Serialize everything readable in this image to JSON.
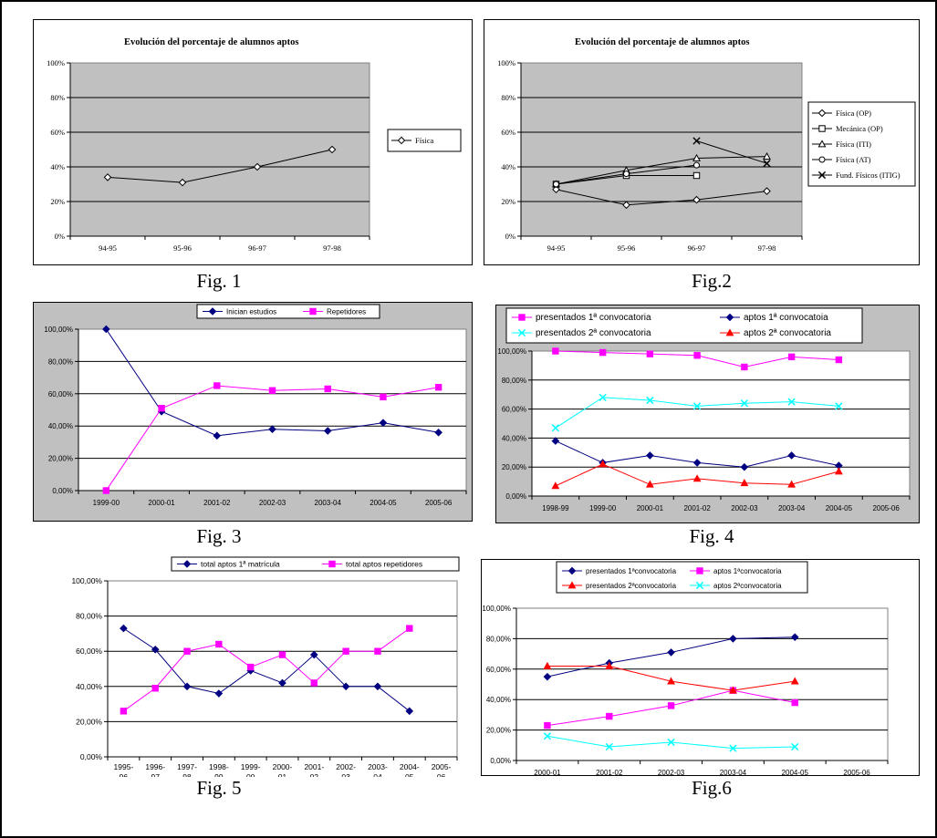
{
  "captions": [
    "Fig. 1",
    "Fig.2",
    "Fig. 3",
    "Fig. 4",
    "Fig. 5",
    "Fig.6"
  ],
  "chart_data": [
    {
      "id": "fig1",
      "type": "line",
      "title": "Evolución del porcentaje de alumnos aptos",
      "categories": [
        "94-95",
        "95-96",
        "96-97",
        "97-98"
      ],
      "ylim": [
        0,
        100
      ],
      "yticks": [
        "0%",
        "20%",
        "40%",
        "60%",
        "80%",
        "100%"
      ],
      "grid": true,
      "legend": "right",
      "series": [
        {
          "name": "Física",
          "marker": "diamond",
          "color": "#000000",
          "values": [
            34,
            31,
            40,
            50
          ]
        }
      ]
    },
    {
      "id": "fig2",
      "type": "line",
      "title": "Evolución del porcentaje de alumnos aptos",
      "categories": [
        "94-95",
        "95-96",
        "96-97",
        "97-98"
      ],
      "ylim": [
        0,
        100
      ],
      "yticks": [
        "0%",
        "20%",
        "40%",
        "60%",
        "80%",
        "100%"
      ],
      "grid": true,
      "legend": "right",
      "series": [
        {
          "name": "Física (OP)",
          "marker": "diamond",
          "color": "#000000",
          "values": [
            27,
            18,
            21,
            26
          ]
        },
        {
          "name": "Mecánica (OP)",
          "marker": "square",
          "color": "#000000",
          "values": [
            30,
            35,
            35,
            null
          ]
        },
        {
          "name": "Física (ITI)",
          "marker": "triangle",
          "color": "#000000",
          "values": [
            30,
            38,
            45,
            46
          ]
        },
        {
          "name": "Física (AT)",
          "marker": "circle",
          "color": "#000000",
          "values": [
            30,
            36,
            41,
            null
          ]
        },
        {
          "name": "Fund. Físicos (ITIG)",
          "marker": "x",
          "color": "#000000",
          "values": [
            null,
            null,
            55,
            42
          ]
        }
      ]
    },
    {
      "id": "fig3",
      "type": "line",
      "categories": [
        "1999-00",
        "2000-01",
        "2001-02",
        "2002-03",
        "2003-04",
        "2004-05",
        "2005-06"
      ],
      "ylim": [
        0,
        100
      ],
      "yticks": [
        "0,00%",
        "20,00%",
        "40,00%",
        "60,00%",
        "80,00%",
        "100,00%"
      ],
      "grid": true,
      "legend": "top",
      "series": [
        {
          "name": "Inician estudios",
          "marker": "diamond",
          "color": "#000080",
          "values": [
            100,
            49,
            34,
            38,
            37,
            42,
            36
          ]
        },
        {
          "name": "Repetidores",
          "marker": "square",
          "color": "#ff00ff",
          "values": [
            0,
            51,
            65,
            62,
            63,
            58,
            64
          ]
        }
      ]
    },
    {
      "id": "fig4",
      "type": "line",
      "categories": [
        "1998-99",
        "1999-00",
        "2000-01",
        "2001-02",
        "2002-03",
        "2003-04",
        "2004-05",
        "2005-06"
      ],
      "ylim": [
        0,
        100
      ],
      "yticks": [
        "0,00%",
        "20,00%",
        "40,00%",
        "60,00%",
        "80,00%",
        "100,00%"
      ],
      "grid": true,
      "legend": "top",
      "series": [
        {
          "name": "presentados 1ª convocatoria",
          "marker": "square",
          "color": "#ff00ff",
          "values": [
            100,
            99,
            98,
            97,
            89,
            96,
            94,
            null
          ]
        },
        {
          "name": "aptos 1ª convocatoia",
          "marker": "diamond",
          "color": "#000080",
          "values": [
            38,
            23,
            28,
            23,
            20,
            28,
            21,
            null
          ]
        },
        {
          "name": "presentados 2ª convocatoria",
          "marker": "x",
          "color": "#00ffff",
          "values": [
            47,
            68,
            66,
            62,
            64,
            65,
            62,
            null
          ]
        },
        {
          "name": "aptos 2ª convocatoria",
          "marker": "triangle",
          "color": "#ff0000",
          "values": [
            7,
            22,
            8,
            12,
            9,
            8,
            17,
            null
          ]
        }
      ]
    },
    {
      "id": "fig5",
      "type": "line",
      "categories": [
        "1995-96",
        "1996-97",
        "1997-98",
        "1998-99",
        "1999-00",
        "2000-01",
        "2001-02",
        "2002-03",
        "2003-04",
        "2004-05",
        "2005-06"
      ],
      "ylim": [
        0,
        100
      ],
      "yticks": [
        "0,00%",
        "20,00%",
        "40,00%",
        "60,00%",
        "80,00%",
        "100,00%"
      ],
      "grid": true,
      "legend": "top",
      "series": [
        {
          "name": "total aptos 1ª matrícula",
          "marker": "diamond",
          "color": "#000080",
          "values": [
            73,
            61,
            40,
            36,
            49,
            42,
            58,
            40,
            40,
            26,
            null
          ]
        },
        {
          "name": "total aptos repetidores",
          "marker": "square",
          "color": "#ff00ff",
          "values": [
            26,
            39,
            60,
            64,
            51,
            58,
            42,
            60,
            60,
            73,
            null
          ]
        }
      ]
    },
    {
      "id": "fig6",
      "type": "line",
      "categories": [
        "2000-01",
        "2001-02",
        "2002-03",
        "2003-04",
        "2004-05",
        "2005-06"
      ],
      "ylim": [
        0,
        100
      ],
      "yticks": [
        "0,00%",
        "20,00%",
        "40,00%",
        "60,00%",
        "80,00%",
        "100,00%"
      ],
      "grid": true,
      "legend": "top",
      "series": [
        {
          "name": "presentados 1ªconvocatoria",
          "marker": "diamond",
          "color": "#000080",
          "values": [
            55,
            64,
            71,
            80,
            81,
            null
          ]
        },
        {
          "name": "aptos 1ªconvocatoria",
          "marker": "square",
          "color": "#ff00ff",
          "values": [
            23,
            29,
            36,
            46,
            38,
            null
          ]
        },
        {
          "name": "presentados 2ªconvocatoria",
          "marker": "triangle",
          "color": "#ff0000",
          "values": [
            62,
            62,
            52,
            46,
            52,
            null
          ]
        },
        {
          "name": "aptos 2ªconvocatoria",
          "marker": "x",
          "color": "#00ffff",
          "values": [
            16,
            9,
            12,
            8,
            9,
            null
          ]
        }
      ]
    }
  ]
}
